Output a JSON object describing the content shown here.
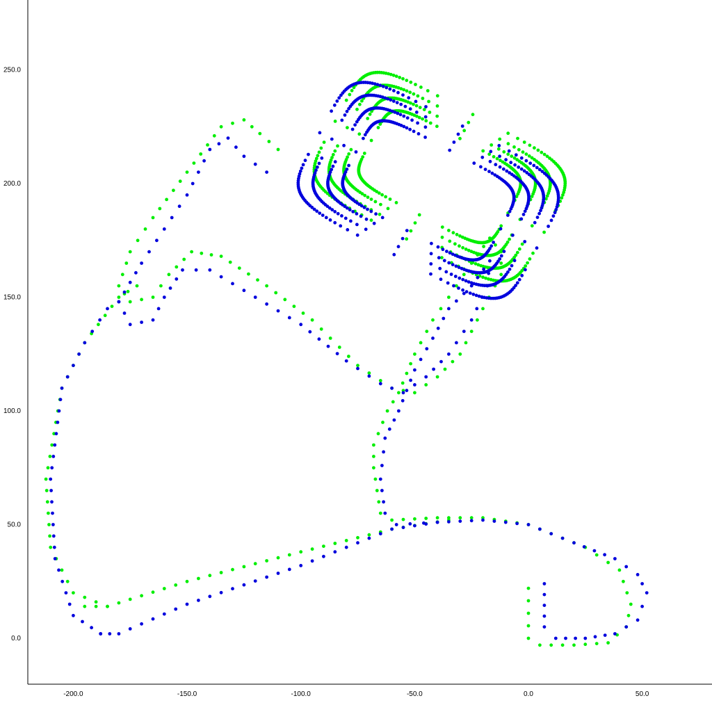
{
  "chart_data": {
    "type": "scatter",
    "title": "",
    "xlabel": "",
    "ylabel": "",
    "xlim": [
      -220,
      80
    ],
    "ylim": [
      -20,
      280
    ],
    "x_ticks": [
      -200,
      -150,
      -100,
      -50,
      0,
      50
    ],
    "y_ticks": [
      0,
      50,
      100,
      150,
      200,
      250
    ],
    "x_tick_labels": [
      "-200.0",
      "-150.0",
      "-100.0",
      "-50.0",
      "0.0",
      "50.0"
    ],
    "y_tick_labels": [
      "0.0",
      "50.0",
      "100.0",
      "150.0",
      "200.0",
      "250.0"
    ],
    "grid": false,
    "legend": "none",
    "series": [
      {
        "color": "#00ee00",
        "path": [
          [
            0,
            22
          ],
          [
            0,
            0
          ],
          [
            5,
            -3
          ],
          [
            20,
            -3
          ],
          [
            35,
            -2
          ],
          [
            43,
            5
          ],
          [
            45,
            15
          ],
          [
            40,
            30
          ],
          [
            25,
            40
          ],
          [
            0,
            50
          ],
          [
            -20,
            53
          ],
          [
            -40,
            53
          ],
          [
            -60,
            52
          ],
          [
            -65,
            55
          ],
          [
            -68,
            75
          ],
          [
            -68,
            85
          ],
          [
            -62,
            100
          ],
          [
            -57,
            108
          ],
          [
            -50,
            125
          ],
          [
            -42,
            140
          ],
          [
            -35,
            150
          ],
          [
            -25,
            165
          ],
          [
            -17,
            176
          ],
          [
            -12,
            170
          ],
          [
            -12,
            160
          ],
          [
            -20,
            145
          ],
          [
            -30,
            125
          ],
          [
            -40,
            115
          ],
          [
            -50,
            108
          ],
          [
            -60,
            110
          ],
          [
            -75,
            120
          ],
          [
            -95,
            140
          ],
          [
            -115,
            155
          ],
          [
            -135,
            168
          ],
          [
            -148,
            170
          ],
          [
            -158,
            160
          ],
          [
            -165,
            150
          ],
          [
            -175,
            148
          ],
          [
            -180,
            155
          ],
          [
            -175,
            170
          ],
          [
            -165,
            185
          ],
          [
            -150,
            205
          ],
          [
            -135,
            225
          ],
          [
            -125,
            228
          ],
          [
            -118,
            222
          ],
          [
            -110,
            215
          ]
        ],
        "loops": [
          {
            "cx": -39,
            "cy": 203,
            "cw": 104,
            "ch": 62,
            "turns": 3.5,
            "shrink": -12
          }
        ],
        "path_tail": [
          [
            -195,
            14
          ],
          [
            -185,
            14
          ],
          [
            -150,
            25
          ],
          [
            -100,
            38
          ],
          [
            -60,
            48
          ],
          [
            -35,
            52
          ]
        ],
        "outline_left": [
          [
            -185,
            14
          ],
          [
            -200,
            20
          ],
          [
            -210,
            40
          ],
          [
            -212,
            70
          ],
          [
            -205,
            110
          ],
          [
            -195,
            130
          ],
          [
            -180,
            150
          ],
          [
            -172,
            155
          ]
        ]
      },
      {
        "color": "#0000dd",
        "path": [
          [
            7,
            24
          ],
          [
            7,
            5
          ],
          [
            12,
            0
          ],
          [
            25,
            0
          ],
          [
            38,
            2
          ],
          [
            48,
            8
          ],
          [
            52,
            20
          ],
          [
            48,
            28
          ],
          [
            38,
            35
          ],
          [
            20,
            42
          ],
          [
            0,
            50
          ],
          [
            -20,
            52
          ],
          [
            -40,
            51
          ],
          [
            -58,
            50
          ],
          [
            -63,
            55
          ],
          [
            -65,
            70
          ],
          [
            -63,
            88
          ],
          [
            -57,
            100
          ],
          [
            -50,
            118
          ],
          [
            -42,
            132
          ],
          [
            -35,
            145
          ],
          [
            -25,
            155
          ],
          [
            -17,
            166
          ],
          [
            -18,
            155
          ],
          [
            -25,
            140
          ],
          [
            -35,
            125
          ],
          [
            -45,
            115
          ],
          [
            -55,
            108
          ],
          [
            -65,
            112
          ],
          [
            -80,
            122
          ],
          [
            -100,
            138
          ],
          [
            -120,
            150
          ],
          [
            -140,
            162
          ],
          [
            -152,
            162
          ],
          [
            -160,
            150
          ],
          [
            -165,
            140
          ],
          [
            -175,
            138
          ],
          [
            -180,
            148
          ],
          [
            -170,
            165
          ],
          [
            -160,
            180
          ],
          [
            -150,
            195
          ],
          [
            -140,
            215
          ],
          [
            -132,
            220
          ],
          [
            -125,
            212
          ],
          [
            -115,
            205
          ]
        ],
        "loops": [
          {
            "cx": -44,
            "cy": 197,
            "cw": 108,
            "ch": 64,
            "turns": 3.5,
            "shrink": -12
          }
        ],
        "path_tail": [
          [
            -188,
            2
          ],
          [
            -180,
            2
          ],
          [
            -150,
            15
          ],
          [
            -100,
            32
          ],
          [
            -60,
            48
          ],
          [
            -40,
            51
          ]
        ],
        "outline_left": [
          [
            -188,
            2
          ],
          [
            -200,
            10
          ],
          [
            -208,
            35
          ],
          [
            -210,
            70
          ],
          [
            -205,
            110
          ],
          [
            -195,
            130
          ],
          [
            -185,
            145
          ],
          [
            -180,
            148
          ]
        ]
      }
    ]
  }
}
